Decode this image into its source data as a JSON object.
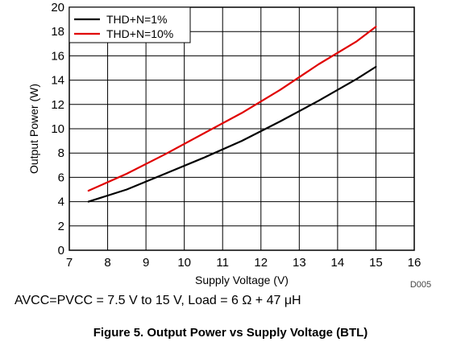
{
  "chart_data": {
    "type": "line",
    "xlabel": "Supply Voltage (V)",
    "ylabel": "Output Power (W)",
    "xlim": [
      7,
      16
    ],
    "ylim": [
      0,
      20
    ],
    "x_ticks": [
      "7",
      "8",
      "9",
      "10",
      "11",
      "12",
      "13",
      "14",
      "15",
      "16"
    ],
    "y_ticks": [
      "0",
      "2",
      "4",
      "6",
      "8",
      "10",
      "12",
      "14",
      "16",
      "18",
      "20"
    ],
    "grid": true,
    "legend_position": "top-left",
    "figure_id": "D005",
    "series": [
      {
        "name": "THD+N=1%",
        "color": "#000000",
        "x": [
          7.5,
          8.5,
          9.5,
          10.5,
          11.5,
          12.5,
          13.5,
          14.5,
          15
        ],
        "y": [
          4.0,
          5.0,
          6.3,
          7.6,
          9.0,
          10.6,
          12.3,
          14.1,
          15.1
        ]
      },
      {
        "name": "THD+N=10%",
        "color": "#e00000",
        "x": [
          7.5,
          8.5,
          9.5,
          10.5,
          11.5,
          12.5,
          13.5,
          14.5,
          15
        ],
        "y": [
          4.9,
          6.3,
          7.9,
          9.6,
          11.3,
          13.2,
          15.3,
          17.2,
          18.4
        ]
      }
    ]
  },
  "caption": {
    "conditions": "AVCC=PVCC = 7.5 V to 15 V, Load = 6 Ω + 47 μH",
    "figure_title": "Figure 5. Output Power vs Supply Voltage (BTL)"
  }
}
